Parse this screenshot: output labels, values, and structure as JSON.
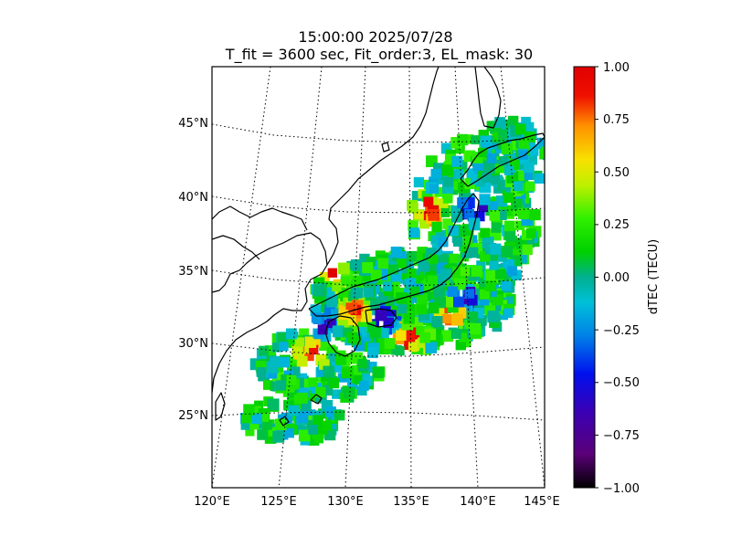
{
  "chart_data": {
    "type": "heatmap",
    "title_line1": "15:00:00 2025/07/28",
    "title_line2": "T_fit = 3600 sec, Fit_order:3, EL_mask: 30",
    "projection": "conic map of Japan region",
    "lon_range": [
      120,
      145
    ],
    "lat_range": [
      20,
      49
    ],
    "x_ticks": [
      "120°E",
      "125°E",
      "130°E",
      "135°E",
      "140°E",
      "145°E"
    ],
    "y_ticks": [
      "25°N",
      "30°N",
      "35°N",
      "40°N",
      "45°N"
    ],
    "grid": true,
    "colorbar": {
      "label": "dTEC (TECU)",
      "range": [
        -1.0,
        1.0
      ],
      "ticks": [
        "1.00",
        "0.75",
        "0.50",
        "0.25",
        "0.00",
        "−0.25",
        "−0.50",
        "−0.75",
        "−1.00"
      ],
      "colormap": "nipy_spectral-like (black–purple–blue–cyan–green–yellow–orange–red)"
    },
    "colors": {
      "coastline": "#000000",
      "frame": "#000000"
    },
    "summary": "Colored square cells show GNSS-derived dTEC over Japan and surrounding seas; mostly green/cyan (near 0 TECU) with scattered red/orange (~+0.8 to +1.0) around Kyushu and central Honshu, and blue/purple (~−0.6 to −0.9) near Kyushu, Shikoku and eastern Honshu."
  }
}
